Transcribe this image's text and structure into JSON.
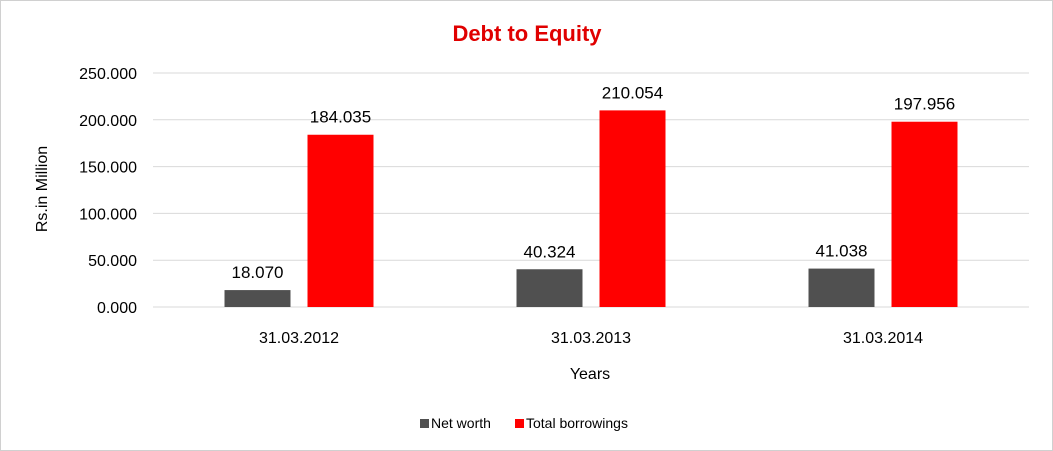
{
  "chart_data": {
    "type": "bar",
    "title": "Debt to Equity",
    "xlabel": "Years",
    "ylabel": "Rs.in Million",
    "categories": [
      "31.03.2012",
      "31.03.2013",
      "31.03.2014"
    ],
    "series": [
      {
        "name": "Net worth",
        "values": [
          18.07,
          40.324,
          41.038
        ],
        "labels": [
          "18.070",
          "40.324",
          "41.038"
        ],
        "color": "#505050"
      },
      {
        "name": "Total borrowings",
        "values": [
          184.035,
          210.054,
          197.956
        ],
        "labels": [
          "184.035",
          "210.054",
          "197.956"
        ],
        "color": "#ff0000"
      }
    ],
    "ylim": [
      0,
      250
    ],
    "yticks": [
      {
        "value": 0,
        "label": "0.000"
      },
      {
        "value": 50,
        "label": "50.000"
      },
      {
        "value": 100,
        "label": "100.000"
      },
      {
        "value": 150,
        "label": "150.000"
      },
      {
        "value": 200,
        "label": "200.000"
      },
      {
        "value": 250,
        "label": "250.000"
      }
    ],
    "grid": true,
    "legend": "bottom",
    "title_color": "#e00000",
    "gridline_color": "#d9d9d9"
  }
}
